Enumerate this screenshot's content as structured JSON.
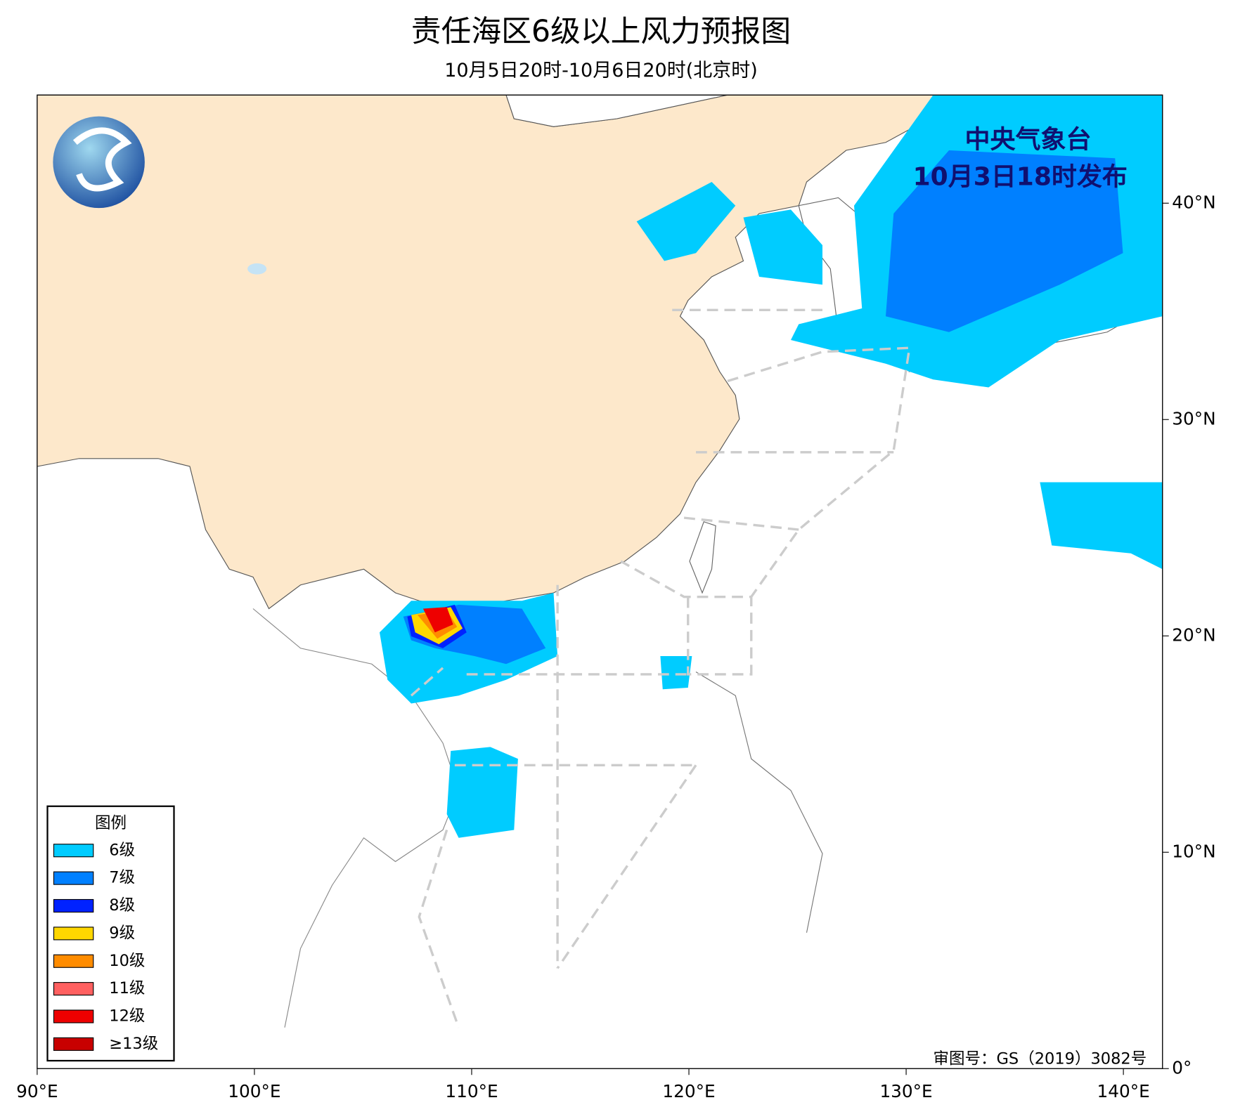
{
  "header": {
    "title": "责任海区6级以上风力预报图",
    "subtitle": "10月5日20时-10月6日20时(北京时)"
  },
  "issuer": {
    "name": "中央气象台",
    "issued": "10月3日18时发布"
  },
  "approval": "审图号：GS（2019）3082号",
  "legend": {
    "title": "图例",
    "items": [
      {
        "label": "6级",
        "color": "#00ccff"
      },
      {
        "label": "7级",
        "color": "#0080ff"
      },
      {
        "label": "8级",
        "color": "#0022ff"
      },
      {
        "label": "9级",
        "color": "#ffd700"
      },
      {
        "label": "10级",
        "color": "#ff8c00"
      },
      {
        "label": "11级",
        "color": "#ff6060"
      },
      {
        "label": "12级",
        "color": "#ee0000"
      },
      {
        "label": "≥13级",
        "color": "#c80000"
      }
    ]
  },
  "axes": {
    "xlim": [
      90,
      141.8
    ],
    "ylim": [
      0,
      45
    ],
    "xticks": [
      {
        "value": 90,
        "label": "90°E"
      },
      {
        "value": 100,
        "label": "100°E"
      },
      {
        "value": 110,
        "label": "110°E"
      },
      {
        "value": 120,
        "label": "120°E"
      },
      {
        "value": 130,
        "label": "130°E"
      },
      {
        "value": 140,
        "label": "140°E"
      }
    ],
    "yticks": [
      {
        "value": 0,
        "label": "0°"
      },
      {
        "value": 10,
        "label": "10°N"
      },
      {
        "value": 20,
        "label": "20°N"
      },
      {
        "value": 30,
        "label": "30°N"
      },
      {
        "value": 40,
        "label": "40°N"
      }
    ]
  }
}
